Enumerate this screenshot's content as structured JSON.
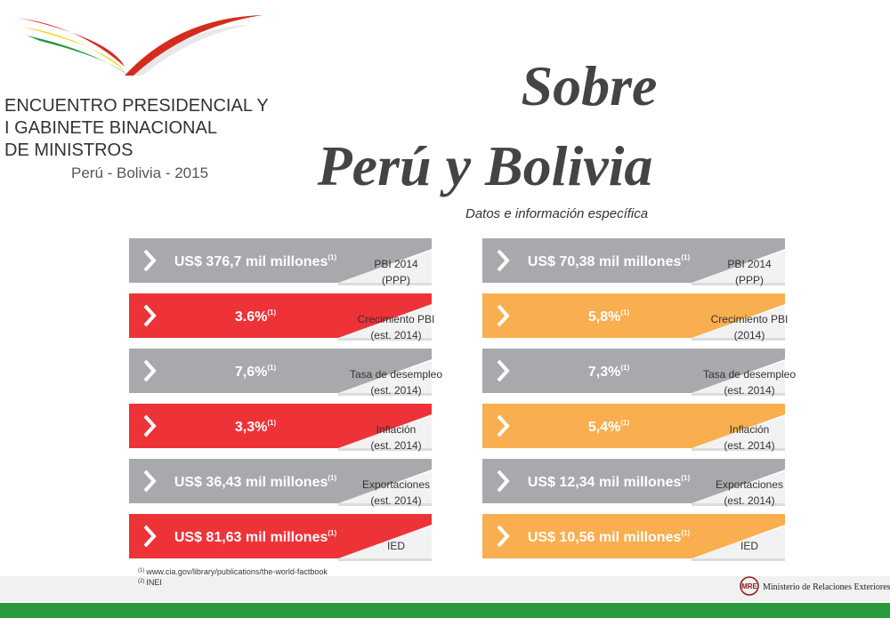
{
  "logo": {
    "lines": [
      "ENCUENTRO PRESIDENCIAL Y",
      "I GABINETE BINACIONAL",
      "DE MINISTROS"
    ],
    "subtitle": "Perú - Bolivia - 2015"
  },
  "title": {
    "line1": "Sobre",
    "line2": "Perú y Bolivia",
    "subtitle": "Datos e información específica"
  },
  "columns": [
    {
      "rows": [
        {
          "value": "US$ 376,7 mil millones",
          "note": "(1)",
          "label": [
            "PBI 2014",
            "(PPP)"
          ],
          "color": "#a7a9ac"
        },
        {
          "value": "3.6%",
          "note": "(1)",
          "label": [
            "Crecimiento PBI",
            "(est. 2014)"
          ],
          "color": "#ee3338"
        },
        {
          "value": "7,6%",
          "note": "(1)",
          "label": [
            "Tasa de desempleo",
            "(est. 2014)"
          ],
          "color": "#a7a9ac"
        },
        {
          "value": "3,3%",
          "note": "(1)",
          "label": [
            "Inflación",
            "(est. 2014)"
          ],
          "color": "#ee3338"
        },
        {
          "value": "US$ 36,43 mil millones",
          "note": "(1)",
          "label": [
            "Exportaciones",
            "(est. 2014)"
          ],
          "color": "#a7a9ac"
        },
        {
          "value": "US$ 81,63 mil millones",
          "note": "(1)",
          "label": [
            "IED"
          ],
          "color": "#ee3338"
        }
      ]
    },
    {
      "rows": [
        {
          "value": "US$ 70,38 mil millones",
          "note": "(1)",
          "label": [
            "PBI 2014",
            "(PPP)"
          ],
          "color": "#a7a9ac"
        },
        {
          "value": "5,8%",
          "note": "(1)",
          "label": [
            "Crecimiento PBI",
            "(2014)"
          ],
          "color": "#f9ae4f"
        },
        {
          "value": "7,3%",
          "note": "(1)",
          "label": [
            "Tasa de desempleo",
            "(est. 2014)"
          ],
          "color": "#a7a9ac"
        },
        {
          "value": "5,4%",
          "note": "(1)",
          "label": [
            "Inflación",
            "(est. 2014)"
          ],
          "color": "#f9ae4f"
        },
        {
          "value": "US$ 12,34 mil millones",
          "note": "(1)",
          "label": [
            "Exportaciones",
            "(est. 2014)"
          ],
          "color": "#a7a9ac"
        },
        {
          "value": "US$ 10,56 mil millones",
          "note": "(1)",
          "label": [
            "IED"
          ],
          "color": "#f9ae4f"
        }
      ]
    }
  ],
  "footnotes": [
    {
      "mark": "(1)",
      "text": "www.cia.gov/library/publications/the-world-factbook"
    },
    {
      "mark": "(2)",
      "text": "INEI"
    }
  ],
  "footer": {
    "logo": "MRE",
    "text": "Ministerio de Relaciones Exteriores"
  }
}
